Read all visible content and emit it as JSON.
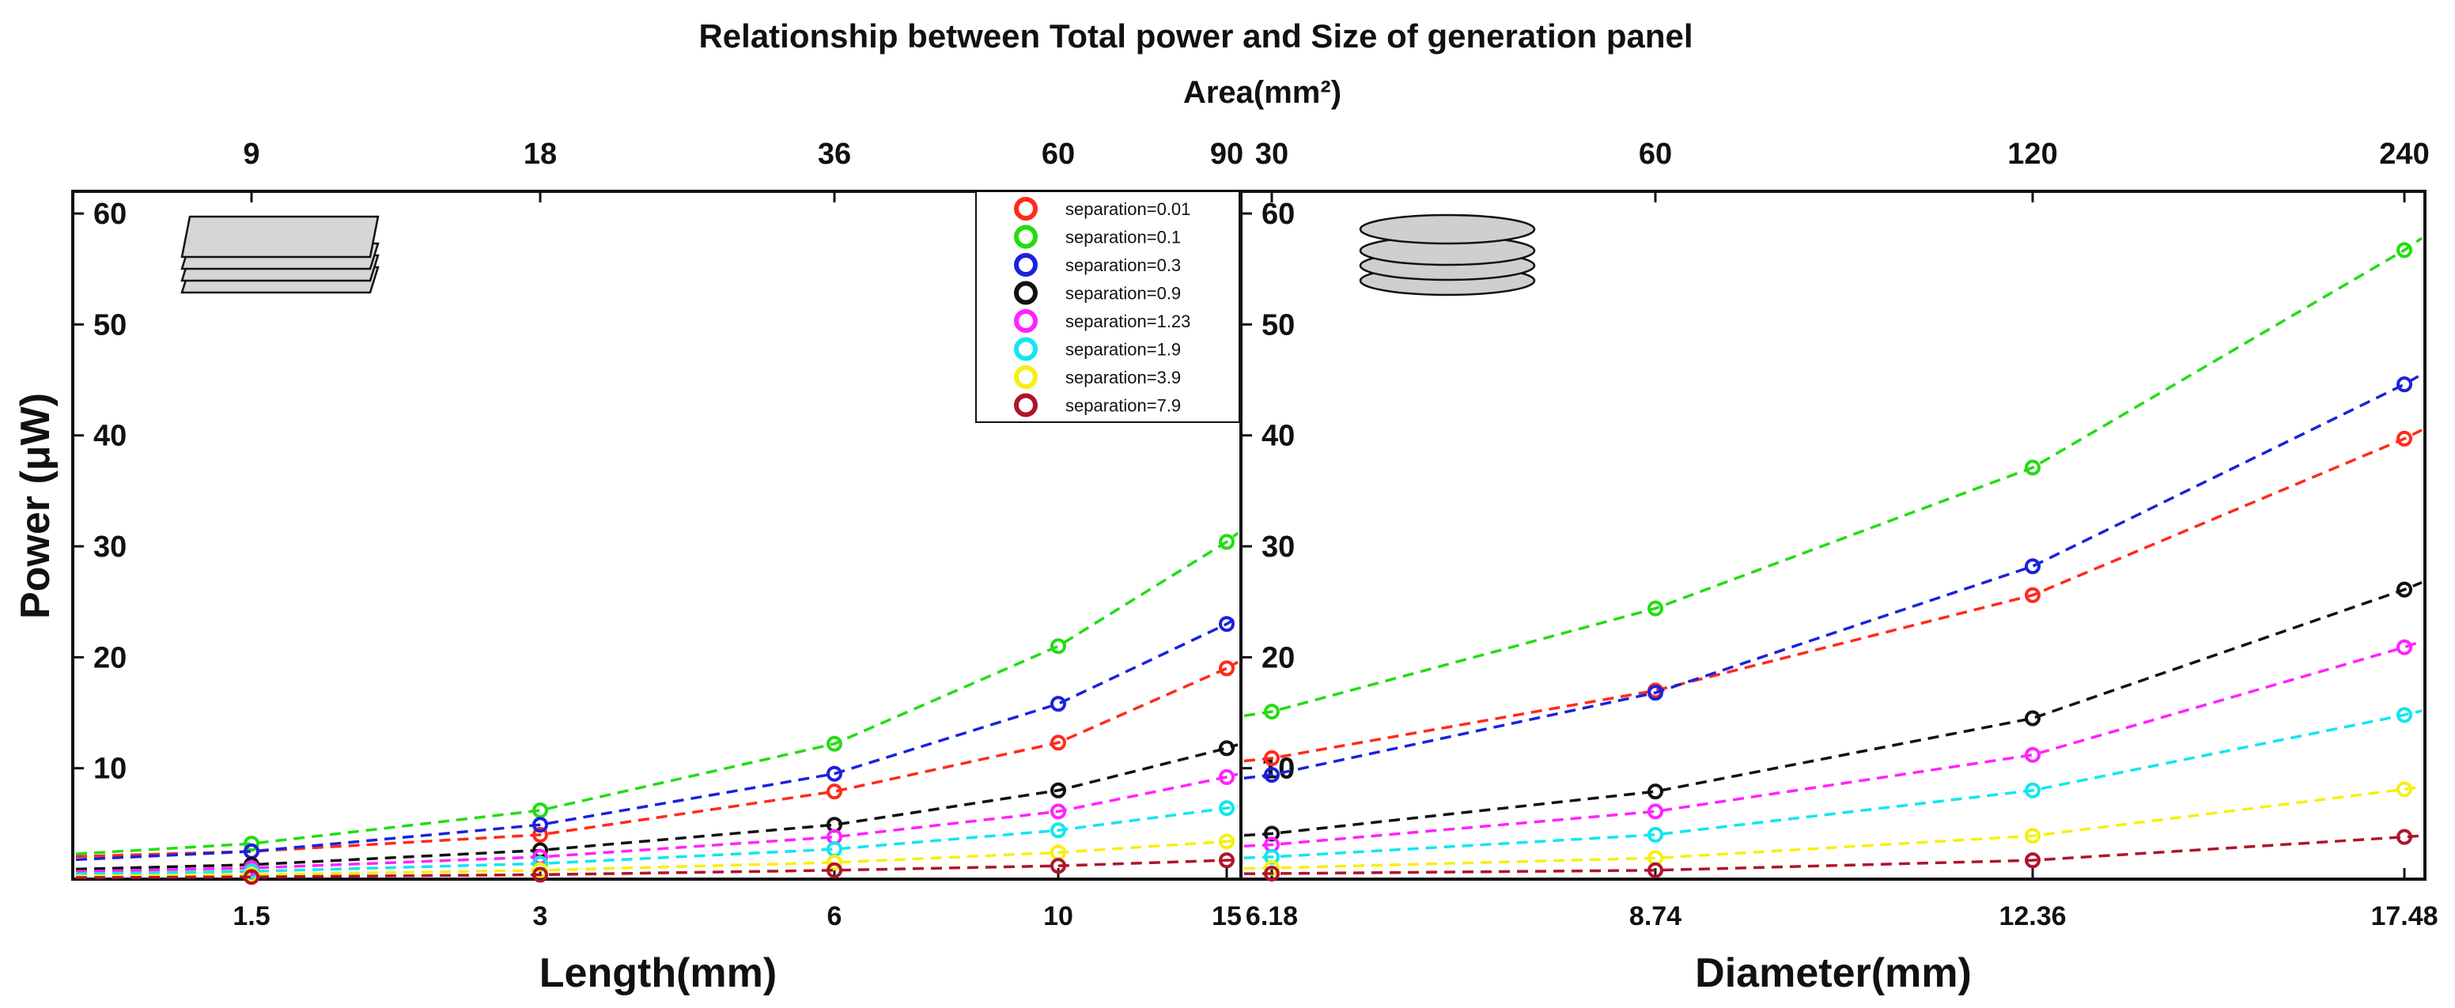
{
  "chart_data": {
    "type": "scatter",
    "title": "Relationship between Total power and Size of generation panel",
    "top_axis_label": "Area(mm²)",
    "ylabel": "Power (μW)",
    "legend": [
      {
        "label": "separation=0.01",
        "color": "#ff2a1a"
      },
      {
        "label": "separation=0.1",
        "color": "#22dd11"
      },
      {
        "label": "separation=0.3",
        "color": "#1a22dd"
      },
      {
        "label": "separation=0.9",
        "color": "#111111"
      },
      {
        "label": "separation=1.23",
        "color": "#ff22ff"
      },
      {
        "label": "separation=1.9",
        "color": "#11e6ee"
      },
      {
        "label": "separation=3.9",
        "color": "#f7ef11"
      },
      {
        "label": "separation=7.9",
        "color": "#b0142c"
      }
    ],
    "panels": [
      {
        "name": "square-plates",
        "xlabel": "Length(mm)",
        "x_ticks": [
          "1.5",
          "3",
          "6",
          "10",
          "15"
        ],
        "top_ticks": [
          "9",
          "18",
          "36",
          "60",
          "90"
        ],
        "y_ticks": [
          "10",
          "20",
          "30",
          "40",
          "50",
          "60"
        ],
        "ylim": [
          0,
          62
        ],
        "series": [
          {
            "name": "separation=0.01",
            "values": [
              2.5,
              4.0,
              7.9,
              12.3,
              19.0
            ]
          },
          {
            "name": "separation=0.1",
            "values": [
              3.2,
              6.2,
              12.2,
              21.0,
              30.4
            ]
          },
          {
            "name": "separation=0.3",
            "values": [
              2.5,
              4.9,
              9.5,
              15.8,
              23.0
            ]
          },
          {
            "name": "separation=0.9",
            "values": [
              1.3,
              2.6,
              4.9,
              8.0,
              11.8
            ]
          },
          {
            "name": "separation=1.23",
            "values": [
              1.0,
              2.0,
              3.8,
              6.1,
              9.2
            ]
          },
          {
            "name": "separation=1.9",
            "values": [
              0.7,
              1.4,
              2.7,
              4.4,
              6.4
            ]
          },
          {
            "name": "separation=3.9",
            "values": [
              0.4,
              0.8,
              1.5,
              2.4,
              3.4
            ]
          },
          {
            "name": "separation=7.9",
            "values": [
              0.2,
              0.4,
              0.8,
              1.2,
              1.7
            ]
          }
        ]
      },
      {
        "name": "circular-disks",
        "xlabel": "Diameter(mm)",
        "x_ticks": [
          "6.18",
          "8.74",
          "12.36",
          "17.48"
        ],
        "top_ticks": [
          "30",
          "60",
          "120",
          "240"
        ],
        "y_ticks": [
          "10",
          "20",
          "30",
          "40",
          "50",
          "60"
        ],
        "ylim": [
          0,
          62
        ],
        "series": [
          {
            "name": "separation=0.01",
            "values": [
              10.9,
              17.0,
              25.6,
              39.7
            ]
          },
          {
            "name": "separation=0.1",
            "values": [
              15.1,
              24.4,
              37.1,
              56.7
            ]
          },
          {
            "name": "separation=0.3",
            "values": [
              9.4,
              16.8,
              28.2,
              44.6
            ]
          },
          {
            "name": "separation=0.9",
            "values": [
              4.1,
              7.9,
              14.5,
              26.1
            ]
          },
          {
            "name": "separation=1.23",
            "values": [
              3.1,
              6.1,
              11.2,
              20.9
            ]
          },
          {
            "name": "separation=1.9",
            "values": [
              2.0,
              4.0,
              8.0,
              14.8
            ]
          },
          {
            "name": "separation=3.9",
            "values": [
              1.0,
              1.9,
              3.9,
              8.1
            ]
          },
          {
            "name": "separation=7.9",
            "values": [
              0.5,
              0.8,
              1.7,
              3.8
            ]
          }
        ]
      }
    ]
  }
}
